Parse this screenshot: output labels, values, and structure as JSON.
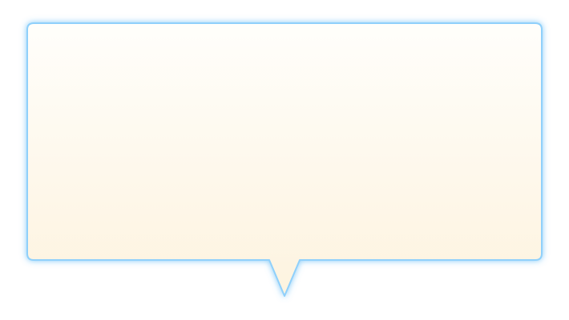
{
  "callout": {
    "text": "",
    "colors": {
      "fill_top": "#fffefb",
      "fill_bottom": "#fdf3df",
      "border": "#8fd0fb",
      "glow": "#5bb8f5"
    }
  }
}
